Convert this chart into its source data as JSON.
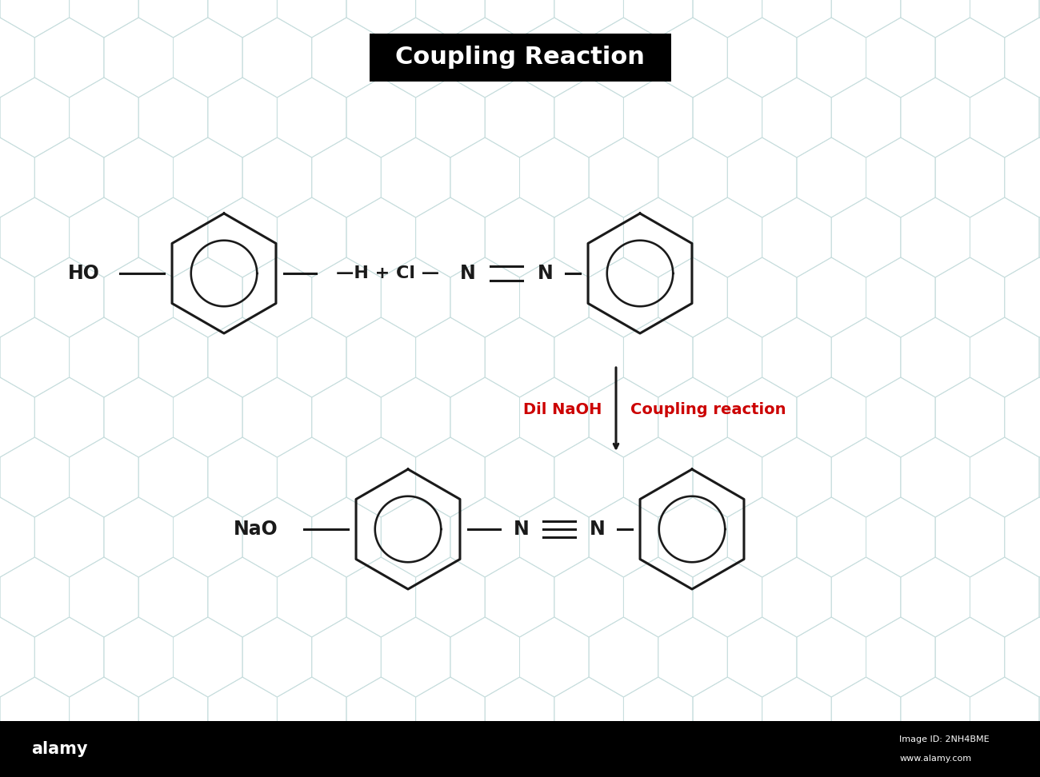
{
  "title": "Coupling Reaction",
  "title_fontsize": 22,
  "title_bg": "#000000",
  "title_fg": "#ffffff",
  "bg_color": "#ffffff",
  "hex_color": "#c8dede",
  "bottom_bar_color": "#000000",
  "reaction_label_color": "#cc0000",
  "reaction_label1": "Dil NaOH",
  "reaction_label2": "Coupling reaction",
  "line_color": "#1a1a1a",
  "line_width": 2.2,
  "inner_circle_lw": 1.8
}
